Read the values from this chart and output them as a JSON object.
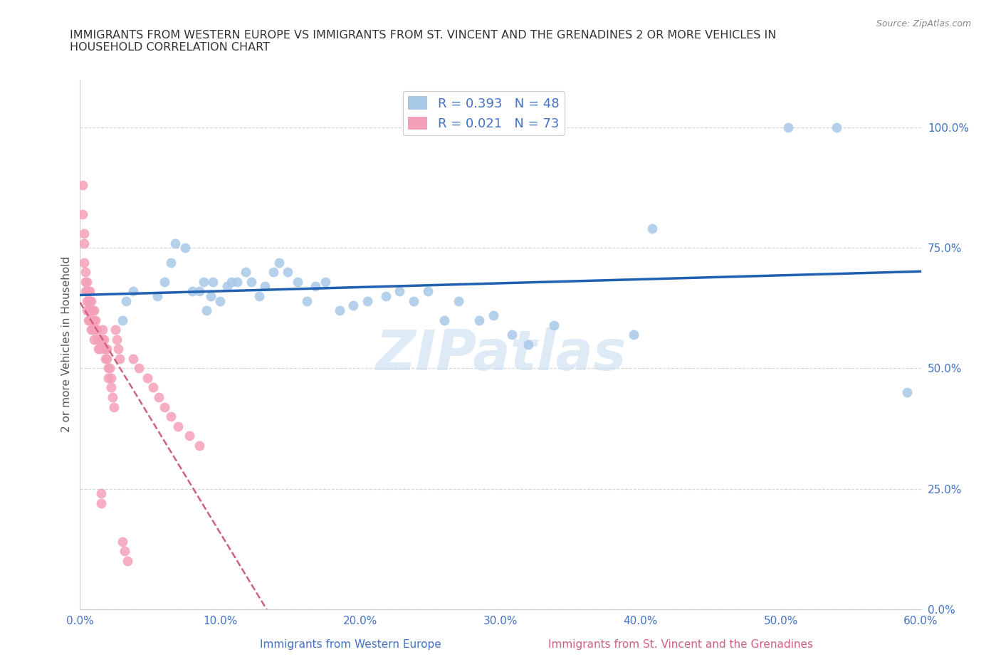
{
  "title": "IMMIGRANTS FROM WESTERN EUROPE VS IMMIGRANTS FROM ST. VINCENT AND THE GRENADINES 2 OR MORE VEHICLES IN\nHOUSEHOLD CORRELATION CHART",
  "source": "Source: ZipAtlas.com",
  "xlabel_blue": "Immigrants from Western Europe",
  "xlabel_pink": "Immigrants from St. Vincent and the Grenadines",
  "ylabel": "2 or more Vehicles in Household",
  "xmin": 0.0,
  "xmax": 0.6,
  "ymin": 0.0,
  "ymax": 1.1,
  "yticks": [
    0.0,
    0.25,
    0.5,
    0.75,
    1.0
  ],
  "ytick_labels": [
    "0.0%",
    "25.0%",
    "50.0%",
    "75.0%",
    "100.0%"
  ],
  "xticks": [
    0.0,
    0.1,
    0.2,
    0.3,
    0.4,
    0.5,
    0.6
  ],
  "xtick_labels": [
    "0.0%",
    "10.0%",
    "20.0%",
    "30.0%",
    "40.0%",
    "50.0%",
    "60.0%"
  ],
  "legend_blue_R": "R = 0.393",
  "legend_blue_N": "N = 48",
  "legend_pink_R": "R = 0.021",
  "legend_pink_N": "N = 73",
  "blue_color": "#a8c8e8",
  "pink_color": "#f4a0b8",
  "line_blue": "#2060b0",
  "line_pink": "#d06080",
  "watermark_color": "#c8dff0",
  "blue_x": [
    0.03,
    0.033,
    0.038,
    0.055,
    0.06,
    0.065,
    0.068,
    0.075,
    0.08,
    0.085,
    0.088,
    0.09,
    0.093,
    0.095,
    0.1,
    0.105,
    0.108,
    0.112,
    0.118,
    0.122,
    0.128,
    0.132,
    0.138,
    0.142,
    0.148,
    0.155,
    0.162,
    0.168,
    0.175,
    0.185,
    0.195,
    0.205,
    0.218,
    0.228,
    0.238,
    0.248,
    0.26,
    0.27,
    0.285,
    0.295,
    0.308,
    0.32,
    0.338,
    0.395,
    0.408,
    0.505,
    0.54,
    0.59
  ],
  "blue_y": [
    0.6,
    0.64,
    0.66,
    0.65,
    0.68,
    0.72,
    0.76,
    0.75,
    0.66,
    0.66,
    0.68,
    0.62,
    0.65,
    0.68,
    0.64,
    0.67,
    0.68,
    0.68,
    0.7,
    0.68,
    0.65,
    0.67,
    0.7,
    0.72,
    0.7,
    0.68,
    0.64,
    0.67,
    0.68,
    0.62,
    0.63,
    0.64,
    0.65,
    0.66,
    0.64,
    0.66,
    0.6,
    0.64,
    0.6,
    0.61,
    0.57,
    0.55,
    0.59,
    0.57,
    0.79,
    1.0,
    1.0,
    0.45
  ],
  "pink_x": [
    0.002,
    0.002,
    0.003,
    0.003,
    0.003,
    0.004,
    0.004,
    0.004,
    0.005,
    0.005,
    0.005,
    0.005,
    0.006,
    0.006,
    0.006,
    0.006,
    0.007,
    0.007,
    0.007,
    0.007,
    0.008,
    0.008,
    0.008,
    0.008,
    0.009,
    0.009,
    0.009,
    0.01,
    0.01,
    0.01,
    0.01,
    0.011,
    0.011,
    0.012,
    0.012,
    0.013,
    0.013,
    0.014,
    0.014,
    0.015,
    0.015,
    0.016,
    0.016,
    0.017,
    0.017,
    0.018,
    0.018,
    0.019,
    0.019,
    0.02,
    0.02,
    0.021,
    0.022,
    0.022,
    0.023,
    0.024,
    0.025,
    0.026,
    0.027,
    0.028,
    0.03,
    0.032,
    0.034,
    0.038,
    0.042,
    0.048,
    0.052,
    0.056,
    0.06,
    0.065,
    0.07,
    0.078,
    0.085
  ],
  "pink_y": [
    0.88,
    0.82,
    0.78,
    0.76,
    0.72,
    0.7,
    0.68,
    0.66,
    0.68,
    0.66,
    0.64,
    0.62,
    0.66,
    0.64,
    0.62,
    0.6,
    0.66,
    0.64,
    0.62,
    0.6,
    0.64,
    0.62,
    0.6,
    0.58,
    0.62,
    0.6,
    0.58,
    0.62,
    0.6,
    0.58,
    0.56,
    0.6,
    0.58,
    0.58,
    0.56,
    0.56,
    0.54,
    0.56,
    0.54,
    0.24,
    0.22,
    0.58,
    0.56,
    0.56,
    0.54,
    0.54,
    0.52,
    0.54,
    0.52,
    0.5,
    0.48,
    0.5,
    0.48,
    0.46,
    0.44,
    0.42,
    0.58,
    0.56,
    0.54,
    0.52,
    0.14,
    0.12,
    0.1,
    0.52,
    0.5,
    0.48,
    0.46,
    0.44,
    0.42,
    0.4,
    0.38,
    0.36,
    0.34
  ]
}
